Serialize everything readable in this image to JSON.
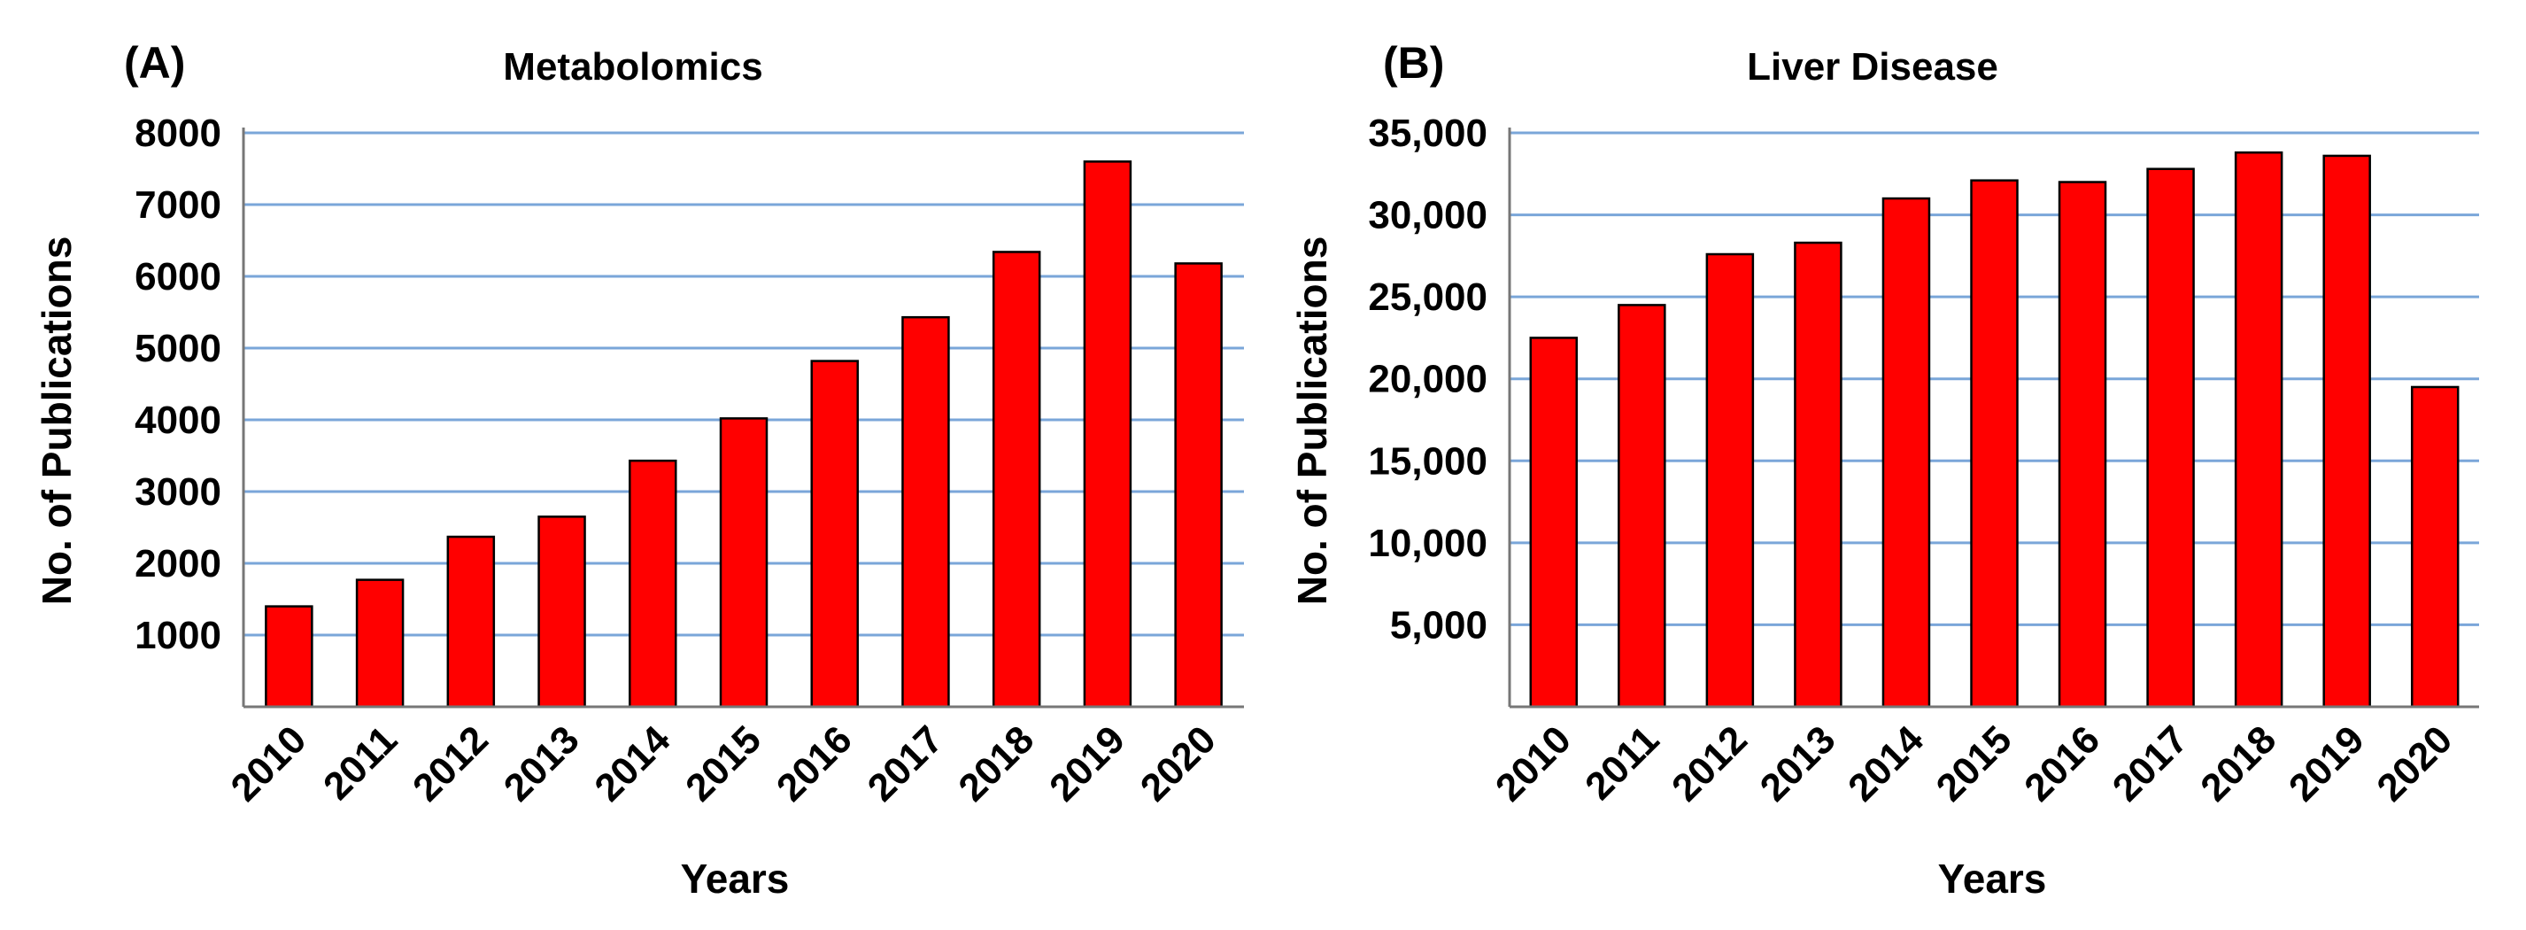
{
  "chart_data": [
    {
      "type": "bar",
      "panel_label": "(A)",
      "title": "Metabolomics",
      "xlabel": "Years",
      "ylabel": "No. of Publications",
      "categories": [
        "2010",
        "2011",
        "2012",
        "2013",
        "2014",
        "2015",
        "2016",
        "2017",
        "2018",
        "2019",
        "2020"
      ],
      "values": [
        1400,
        1770,
        2370,
        2650,
        3430,
        4020,
        4820,
        5430,
        6340,
        7600,
        6180
      ],
      "ylim": [
        0,
        8000
      ],
      "yticks": [
        1000,
        2000,
        3000,
        4000,
        5000,
        6000,
        7000,
        8000
      ],
      "ytick_labels": [
        "1000",
        "2000",
        "3000",
        "4000",
        "5000",
        "6000",
        "7000",
        "8000"
      ],
      "grid": true,
      "bar_color": "#ff0000",
      "grid_color": "#7aa6d9"
    },
    {
      "type": "bar",
      "panel_label": "(B)",
      "title": "Liver Disease",
      "xlabel": "Years",
      "ylabel": "No. of Publications",
      "categories": [
        "2010",
        "2011",
        "2012",
        "2013",
        "2014",
        "2015",
        "2016",
        "2017",
        "2018",
        "2019",
        "2020"
      ],
      "values": [
        22500,
        24500,
        27600,
        28300,
        31000,
        32100,
        32000,
        32800,
        33800,
        33600,
        19500
      ],
      "ylim": [
        0,
        35000
      ],
      "yticks": [
        5000,
        10000,
        15000,
        20000,
        25000,
        30000,
        35000
      ],
      "ytick_labels": [
        "5,000",
        "10,000",
        "15,000",
        "20,000",
        "25,000",
        "30,000",
        "35,000"
      ],
      "grid": true,
      "bar_color": "#ff0000",
      "grid_color": "#7aa6d9"
    }
  ]
}
